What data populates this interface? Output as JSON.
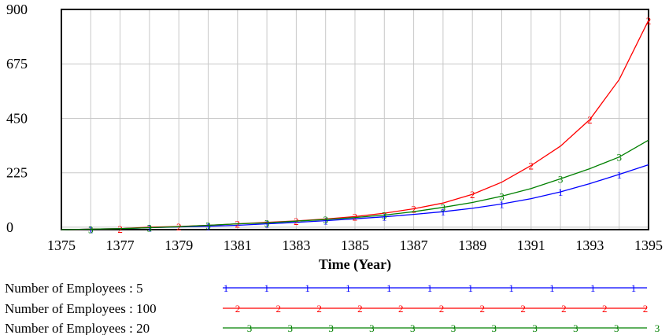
{
  "chart_data": {
    "type": "line",
    "title": "",
    "xlabel": "Time (Year)",
    "ylabel": "",
    "x": [
      1375,
      1376,
      1377,
      1378,
      1379,
      1380,
      1381,
      1382,
      1383,
      1384,
      1385,
      1386,
      1387,
      1388,
      1389,
      1390,
      1391,
      1392,
      1393,
      1394,
      1395
    ],
    "xticks": [
      1375,
      1377,
      1379,
      1381,
      1383,
      1385,
      1387,
      1389,
      1391,
      1393,
      1395
    ],
    "yticks": [
      0,
      225,
      450,
      675,
      900
    ],
    "xlim": [
      1375,
      1395
    ],
    "ylim": [
      -10,
      900
    ],
    "grid": true,
    "legend_position": "bottom",
    "series": [
      {
        "name": "Number of Employees : 5",
        "marker": "1",
        "color": "#0000ff",
        "values": [
          -10,
          -8,
          -6,
          -2,
          1,
          4,
          8,
          14,
          20,
          27,
          35,
          43,
          53,
          64,
          78,
          96,
          118,
          146,
          180,
          218,
          258
        ]
      },
      {
        "name": "Number of Employees : 100",
        "marker": "2",
        "color": "#ff0000",
        "values": [
          -10,
          -8,
          -6,
          0,
          3,
          8,
          14,
          20,
          26,
          34,
          44,
          58,
          76,
          100,
          136,
          186,
          255,
          335,
          445,
          610,
          855
        ]
      },
      {
        "name": "Number of Employees : 20",
        "marker": "3",
        "color": "#008000",
        "values": [
          -10,
          -8,
          -6,
          -2,
          2,
          8,
          14,
          18,
          25,
          32,
          40,
          50,
          64,
          82,
          102,
          128,
          160,
          200,
          242,
          290,
          360
        ]
      }
    ]
  }
}
